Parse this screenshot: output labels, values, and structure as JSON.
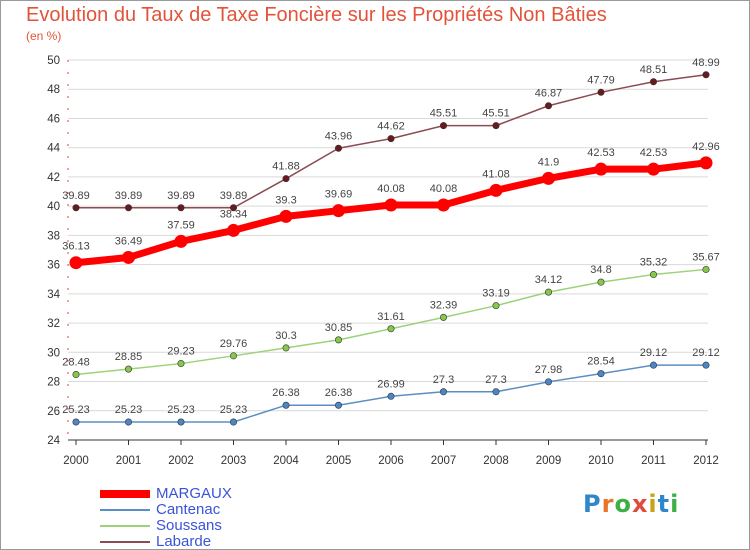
{
  "title": "Evolution du Taux de Taxe Foncière sur les Propriétés Non Bâties",
  "subtitle": "(en %)",
  "logo": {
    "text": "Proxiti",
    "colors": [
      "#2f86c9",
      "#e8762a",
      "#3cb045",
      "#e14b3b",
      "#c9a21a",
      "#2f86c9",
      "#3cb045"
    ]
  },
  "colors": {
    "title": "#e2533a",
    "axis_line": "#e0463a",
    "grid": "#d9d9d9"
  },
  "chart_data": {
    "type": "line",
    "x": [
      "2000",
      "2001",
      "2002",
      "2003",
      "2004",
      "2005",
      "2006",
      "2007",
      "2008",
      "2009",
      "2010",
      "2011",
      "2012"
    ],
    "ylim": [
      24,
      50
    ],
    "yticks": [
      24,
      26,
      28,
      30,
      32,
      34,
      36,
      38,
      40,
      42,
      44,
      46,
      48,
      50
    ],
    "grid": true,
    "legend_position": "bottom-left",
    "series": [
      {
        "name": "MARGAUX",
        "color": "#ff0000",
        "width": 7,
        "values": [
          36.13,
          36.49,
          37.59,
          38.34,
          39.3,
          39.69,
          40.08,
          40.08,
          41.08,
          41.9,
          42.53,
          42.53,
          42.96
        ],
        "labels": [
          "36.13",
          "36.49",
          "37.59",
          "38.34",
          "39.3",
          "39.69",
          "40.08",
          "40.08",
          "41.08",
          "41.9",
          "42.53",
          "42.53",
          "42.96"
        ]
      },
      {
        "name": "Cantenac",
        "color": "#5b8fc2",
        "marker": "#4a86c8",
        "width": 1.5,
        "values": [
          25.23,
          25.23,
          25.23,
          25.23,
          26.38,
          26.38,
          26.99,
          27.3,
          27.3,
          27.98,
          28.54,
          29.12,
          29.12
        ],
        "labels": [
          "25.23",
          "25.23",
          "25.23",
          "25.23",
          "26.38",
          "26.38",
          "26.99",
          "27.3",
          "27.3",
          "27.98",
          "28.54",
          "29.12",
          "29.12"
        ]
      },
      {
        "name": "Soussans",
        "color": "#9cd37a",
        "marker": "#86c84a",
        "width": 1.5,
        "values": [
          28.48,
          28.85,
          29.23,
          29.76,
          30.3,
          30.85,
          31.61,
          32.39,
          33.19,
          34.12,
          34.8,
          35.32,
          35.67
        ],
        "labels": [
          "28.48",
          "28.85",
          "29.23",
          "29.76",
          "30.3",
          "30.85",
          "31.61",
          "32.39",
          "33.19",
          "34.12",
          "34.8",
          "35.32",
          "35.67"
        ]
      },
      {
        "name": "Labarde",
        "color": "#8a4b52",
        "marker": "#6a1a1f",
        "width": 1.5,
        "values": [
          39.89,
          39.89,
          39.89,
          39.89,
          41.88,
          43.96,
          44.62,
          45.51,
          45.51,
          46.87,
          47.79,
          48.51,
          48.99
        ],
        "labels": [
          "39.89",
          "39.89",
          "39.89",
          "39.89",
          "41.88",
          "43.96",
          "44.62",
          "45.51",
          "45.51",
          "46.87",
          "47.79",
          "48.51",
          "48.99"
        ]
      }
    ]
  }
}
